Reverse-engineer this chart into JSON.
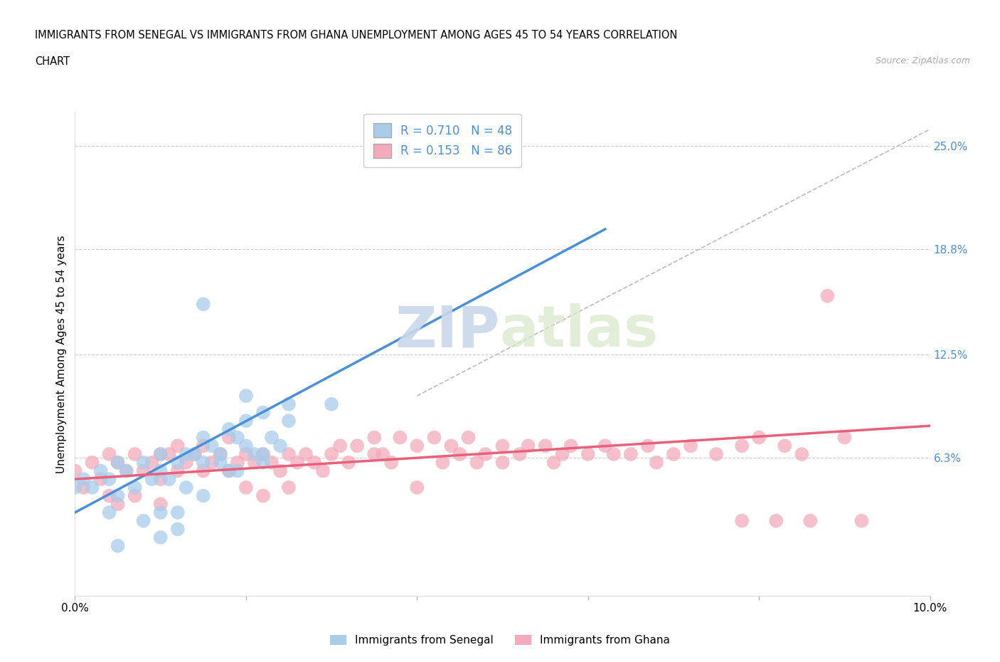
{
  "title_line1": "IMMIGRANTS FROM SENEGAL VS IMMIGRANTS FROM GHANA UNEMPLOYMENT AMONG AGES 45 TO 54 YEARS CORRELATION",
  "title_line2": "CHART",
  "source": "Source: ZipAtlas.com",
  "ylabel": "Unemployment Among Ages 45 to 54 years",
  "xlim": [
    0.0,
    0.1
  ],
  "ylim": [
    -0.02,
    0.27
  ],
  "xticks": [
    0.0,
    0.02,
    0.04,
    0.06,
    0.08,
    0.1
  ],
  "xticklabels": [
    "0.0%",
    "",
    "",
    "",
    "",
    "10.0%"
  ],
  "right_yticks": [
    0.063,
    0.125,
    0.188,
    0.25
  ],
  "right_yticklabels": [
    "6.3%",
    "12.5%",
    "18.8%",
    "25.0%"
  ],
  "senegal_R": 0.71,
  "senegal_N": 48,
  "ghana_R": 0.153,
  "ghana_N": 86,
  "senegal_color": "#A8CCEA",
  "ghana_color": "#F4AABB",
  "senegal_line_color": "#4A90D9",
  "ghana_line_color": "#E8607A",
  "trend_line_dashed_color": "#BBBBBB",
  "background_color": "#FFFFFF",
  "grid_color": "#CCCCCC",
  "senegal_trend_x": [
    0.0,
    0.062
  ],
  "senegal_trend_y": [
    0.03,
    0.2
  ],
  "ghana_trend_x": [
    0.0,
    0.1
  ],
  "ghana_trend_y": [
    0.05,
    0.082
  ],
  "diagonal_line_x": [
    0.04,
    0.1
  ],
  "diagonal_line_y": [
    0.1,
    0.26
  ],
  "senegal_scatter_x": [
    0.0,
    0.001,
    0.002,
    0.003,
    0.004,
    0.005,
    0.005,
    0.006,
    0.007,
    0.008,
    0.009,
    0.01,
    0.01,
    0.011,
    0.012,
    0.013,
    0.013,
    0.014,
    0.015,
    0.015,
    0.016,
    0.017,
    0.018,
    0.019,
    0.02,
    0.021,
    0.022,
    0.023,
    0.024,
    0.015,
    0.02,
    0.025,
    0.01,
    0.015,
    0.02,
    0.022,
    0.025,
    0.018,
    0.03,
    0.012,
    0.008,
    0.005,
    0.017,
    0.022,
    0.019,
    0.01,
    0.004,
    0.012
  ],
  "senegal_scatter_y": [
    0.045,
    0.05,
    0.045,
    0.055,
    0.05,
    0.06,
    0.04,
    0.055,
    0.045,
    0.06,
    0.05,
    0.055,
    0.065,
    0.05,
    0.06,
    0.065,
    0.045,
    0.065,
    0.06,
    0.075,
    0.07,
    0.06,
    0.055,
    0.075,
    0.07,
    0.065,
    0.06,
    0.075,
    0.07,
    0.155,
    0.1,
    0.085,
    0.015,
    0.04,
    0.085,
    0.09,
    0.095,
    0.08,
    0.095,
    0.03,
    0.025,
    0.01,
    0.065,
    0.065,
    0.055,
    0.03,
    0.03,
    0.02
  ],
  "ghana_scatter_x": [
    0.0,
    0.001,
    0.002,
    0.003,
    0.004,
    0.004,
    0.005,
    0.005,
    0.006,
    0.007,
    0.007,
    0.008,
    0.009,
    0.01,
    0.01,
    0.01,
    0.011,
    0.012,
    0.012,
    0.013,
    0.014,
    0.015,
    0.015,
    0.016,
    0.017,
    0.018,
    0.018,
    0.019,
    0.02,
    0.02,
    0.021,
    0.022,
    0.022,
    0.023,
    0.024,
    0.025,
    0.025,
    0.026,
    0.027,
    0.028,
    0.029,
    0.03,
    0.031,
    0.032,
    0.033,
    0.035,
    0.035,
    0.036,
    0.037,
    0.038,
    0.04,
    0.04,
    0.042,
    0.043,
    0.044,
    0.045,
    0.046,
    0.047,
    0.048,
    0.05,
    0.05,
    0.052,
    0.053,
    0.055,
    0.056,
    0.057,
    0.058,
    0.06,
    0.062,
    0.063,
    0.065,
    0.067,
    0.068,
    0.07,
    0.072,
    0.075,
    0.078,
    0.08,
    0.083,
    0.085,
    0.088,
    0.09,
    0.078,
    0.082,
    0.086,
    0.092
  ],
  "ghana_scatter_y": [
    0.055,
    0.045,
    0.06,
    0.05,
    0.065,
    0.04,
    0.06,
    0.035,
    0.055,
    0.065,
    0.04,
    0.055,
    0.06,
    0.05,
    0.065,
    0.035,
    0.065,
    0.055,
    0.07,
    0.06,
    0.065,
    0.055,
    0.07,
    0.06,
    0.065,
    0.055,
    0.075,
    0.06,
    0.065,
    0.045,
    0.06,
    0.065,
    0.04,
    0.06,
    0.055,
    0.065,
    0.045,
    0.06,
    0.065,
    0.06,
    0.055,
    0.065,
    0.07,
    0.06,
    0.07,
    0.065,
    0.075,
    0.065,
    0.06,
    0.075,
    0.07,
    0.045,
    0.075,
    0.06,
    0.07,
    0.065,
    0.075,
    0.06,
    0.065,
    0.07,
    0.06,
    0.065,
    0.07,
    0.07,
    0.06,
    0.065,
    0.07,
    0.065,
    0.07,
    0.065,
    0.065,
    0.07,
    0.06,
    0.065,
    0.07,
    0.065,
    0.07,
    0.075,
    0.07,
    0.065,
    0.16,
    0.075,
    0.025,
    0.025,
    0.025,
    0.025
  ]
}
